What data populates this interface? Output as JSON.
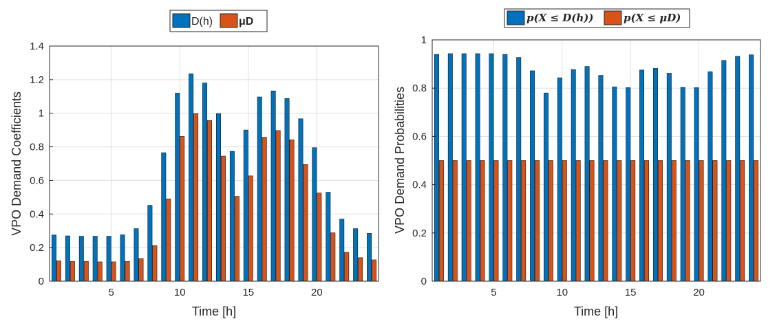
{
  "colors": {
    "series1": "#0072BD",
    "series2": "#D95319",
    "grid": "#dfdfdf",
    "axis": "#262626"
  },
  "chart_data": [
    {
      "type": "bar",
      "xlabel": "Time [h]",
      "ylabel": "VPO Demand Coefficients",
      "categories": [
        1,
        2,
        3,
        4,
        5,
        6,
        7,
        8,
        9,
        10,
        11,
        12,
        13,
        14,
        15,
        16,
        17,
        18,
        19,
        20,
        21,
        22,
        23,
        24
      ],
      "xticks": [
        5,
        10,
        15,
        20
      ],
      "xtick_labels": [
        "5",
        "10",
        "15",
        "20"
      ],
      "xlim": [
        0.5,
        24.5
      ],
      "ylim": [
        0,
        1.4
      ],
      "yticks": [
        0,
        0.2,
        0.4,
        0.6,
        0.8,
        1,
        1.2,
        1.4
      ],
      "ytick_labels": [
        "0",
        "0.2",
        "0.4",
        "0.6",
        "0.8",
        "1",
        "1.2",
        "1.4"
      ],
      "grid": true,
      "legend_position": "top-center",
      "series": [
        {
          "name": "D(h)",
          "values": [
            0.275,
            0.27,
            0.268,
            0.268,
            0.268,
            0.276,
            0.313,
            0.452,
            0.765,
            1.12,
            1.235,
            1.18,
            0.998,
            0.773,
            0.9,
            1.097,
            1.133,
            1.088,
            0.967,
            0.795,
            0.53,
            0.37,
            0.313,
            0.285
          ]
        },
        {
          "name": "μD",
          "values": [
            0.122,
            0.118,
            0.118,
            0.115,
            0.115,
            0.118,
            0.135,
            0.212,
            0.49,
            0.862,
            0.998,
            0.957,
            0.745,
            0.505,
            0.627,
            0.857,
            0.897,
            0.842,
            0.695,
            0.525,
            0.288,
            0.172,
            0.14,
            0.127
          ]
        }
      ]
    },
    {
      "type": "bar",
      "xlabel": "Time [h]",
      "ylabel": "VPO Demand Probabilities",
      "categories": [
        1,
        2,
        3,
        4,
        5,
        6,
        7,
        8,
        9,
        10,
        11,
        12,
        13,
        14,
        15,
        16,
        17,
        18,
        19,
        20,
        21,
        22,
        23,
        24
      ],
      "xticks": [
        5,
        10,
        15,
        20
      ],
      "xtick_labels": [
        "5",
        "10",
        "15",
        "20"
      ],
      "xlim": [
        0.5,
        24.5
      ],
      "ylim": [
        0,
        1
      ],
      "yticks": [
        0,
        0.2,
        0.4,
        0.6,
        0.8,
        1
      ],
      "ytick_labels": [
        "0",
        "0.2",
        "0.4",
        "0.6",
        "0.8",
        "1"
      ],
      "grid": true,
      "legend_position": "top-center",
      "series": [
        {
          "name": "p(X ≤ D(h))",
          "values": [
            0.94,
            0.943,
            0.943,
            0.943,
            0.943,
            0.94,
            0.927,
            0.872,
            0.78,
            0.843,
            0.877,
            0.89,
            0.853,
            0.805,
            0.802,
            0.875,
            0.882,
            0.862,
            0.803,
            0.802,
            0.868,
            0.915,
            0.932,
            0.938
          ]
        },
        {
          "name": "p(X ≤ μD)",
          "values": [
            0.5,
            0.5,
            0.5,
            0.5,
            0.5,
            0.5,
            0.5,
            0.5,
            0.5,
            0.5,
            0.5,
            0.5,
            0.5,
            0.5,
            0.5,
            0.5,
            0.5,
            0.5,
            0.5,
            0.5,
            0.5,
            0.5,
            0.5,
            0.5
          ]
        }
      ]
    }
  ]
}
